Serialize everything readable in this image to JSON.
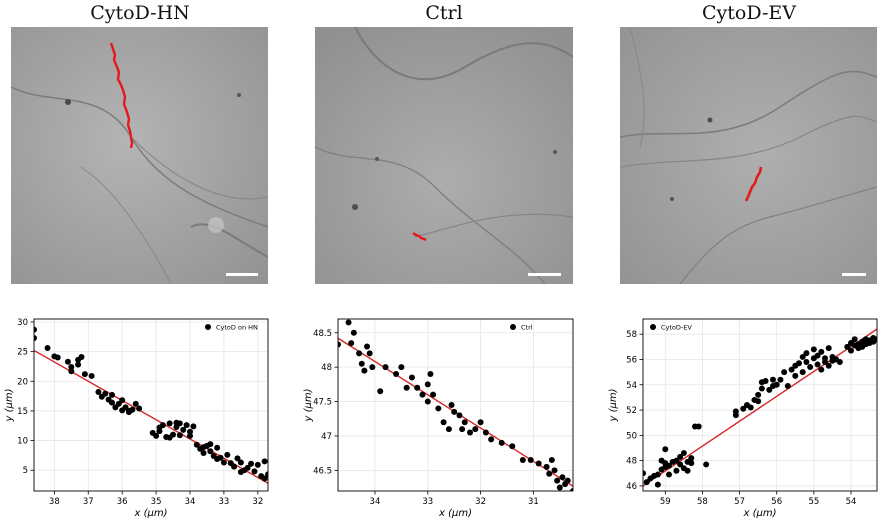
{
  "panels": [
    {
      "title": "CytoD-HN"
    },
    {
      "title": "Ctrl"
    },
    {
      "title": "CytoD-EV"
    }
  ],
  "colors": {
    "track": "#e41a1c",
    "fit_line": "#d62728",
    "points": "#000000",
    "grid": "#e6e6e6"
  },
  "chart_data": [
    {
      "type": "scatter",
      "xlabel": "x (μm)",
      "ylabel": "y (μm)",
      "x_reversed": true,
      "xlim": [
        38.6,
        31.7
      ],
      "ylim": [
        1.5,
        30.5
      ],
      "xticks": [
        38,
        37,
        36,
        35,
        34,
        33,
        32
      ],
      "yticks": [
        5,
        10,
        15,
        20,
        25,
        30
      ],
      "legend": "CytoD on HN",
      "legend_position": "top-right",
      "grid": true,
      "fit_line": {
        "x": [
          38.6,
          31.7
        ],
        "y": [
          25.2,
          2.8
        ]
      },
      "series": [
        {
          "name": "CytoD on HN",
          "points": [
            [
              38.6,
              28.7
            ],
            [
              38.6,
              27.3
            ],
            [
              38.2,
              25.6
            ],
            [
              38.0,
              24.2
            ],
            [
              37.9,
              24.0
            ],
            [
              37.6,
              23.3
            ],
            [
              37.5,
              22.4
            ],
            [
              37.5,
              21.7
            ],
            [
              37.3,
              23.6
            ],
            [
              37.2,
              24.1
            ],
            [
              37.3,
              22.8
            ],
            [
              37.1,
              21.2
            ],
            [
              36.9,
              20.9
            ],
            [
              36.7,
              18.2
            ],
            [
              36.6,
              17.4
            ],
            [
              36.5,
              17.9
            ],
            [
              36.4,
              16.9
            ],
            [
              36.3,
              16.4
            ],
            [
              36.2,
              15.6
            ],
            [
              36.3,
              17.7
            ],
            [
              36.1,
              16.2
            ],
            [
              36.0,
              15.1
            ],
            [
              35.9,
              15.6
            ],
            [
              35.8,
              15.0
            ],
            [
              35.7,
              15.2
            ],
            [
              35.6,
              16.2
            ],
            [
              35.5,
              15.4
            ],
            [
              36.0,
              16.8
            ],
            [
              35.8,
              14.8
            ],
            [
              35.1,
              11.3
            ],
            [
              35.0,
              10.8
            ],
            [
              34.9,
              11.6
            ],
            [
              34.8,
              12.6
            ],
            [
              34.7,
              10.6
            ],
            [
              34.6,
              12.9
            ],
            [
              34.5,
              11.0
            ],
            [
              34.4,
              12.3
            ],
            [
              34.3,
              10.9
            ],
            [
              34.2,
              11.8
            ],
            [
              34.1,
              12.6
            ],
            [
              34.0,
              11.5
            ],
            [
              33.9,
              12.4
            ],
            [
              34.4,
              13.0
            ],
            [
              34.6,
              10.5
            ],
            [
              34.9,
              12.2
            ],
            [
              34.3,
              12.9
            ],
            [
              34.0,
              10.8
            ],
            [
              33.8,
              9.3
            ],
            [
              33.7,
              8.6
            ],
            [
              33.6,
              7.9
            ],
            [
              33.5,
              9.1
            ],
            [
              33.4,
              8.2
            ],
            [
              33.3,
              7.4
            ],
            [
              33.2,
              8.8
            ],
            [
              33.1,
              7.1
            ],
            [
              33.0,
              6.3
            ],
            [
              32.9,
              7.6
            ],
            [
              33.2,
              6.9
            ],
            [
              33.4,
              9.4
            ],
            [
              33.6,
              8.9
            ],
            [
              32.8,
              6.2
            ],
            [
              32.7,
              5.6
            ],
            [
              32.6,
              7.0
            ],
            [
              32.5,
              6.3
            ],
            [
              32.4,
              5.0
            ],
            [
              32.3,
              5.4
            ],
            [
              32.1,
              4.8
            ],
            [
              32.0,
              5.9
            ],
            [
              31.9,
              4.0
            ],
            [
              31.8,
              3.6
            ],
            [
              31.7,
              4.3
            ],
            [
              32.5,
              4.7
            ],
            [
              32.2,
              6.1
            ],
            [
              31.8,
              6.5
            ]
          ]
        }
      ]
    },
    {
      "type": "scatter",
      "xlabel": "x (μm)",
      "ylabel": "y (μm)",
      "x_reversed": true,
      "xlim": [
        34.7,
        30.25
      ],
      "ylim": [
        46.2,
        48.7
      ],
      "xticks": [
        34,
        33,
        32,
        31
      ],
      "yticks": [
        46.5,
        47.0,
        47.5,
        48.0,
        48.5
      ],
      "legend": "Ctrl",
      "legend_position": "top-right",
      "grid": true,
      "fit_line": {
        "x": [
          34.7,
          30.25
        ],
        "y": [
          48.42,
          46.27
        ]
      },
      "series": [
        {
          "name": "Ctrl",
          "points": [
            [
              34.7,
              48.33
            ],
            [
              34.5,
              48.65
            ],
            [
              34.45,
              48.35
            ],
            [
              34.4,
              48.5
            ],
            [
              34.3,
              48.2
            ],
            [
              34.25,
              48.05
            ],
            [
              34.2,
              47.95
            ],
            [
              34.15,
              48.3
            ],
            [
              34.1,
              48.2
            ],
            [
              34.05,
              48.0
            ],
            [
              33.9,
              47.65
            ],
            [
              33.8,
              48.0
            ],
            [
              33.6,
              47.9
            ],
            [
              33.5,
              48.0
            ],
            [
              33.4,
              47.7
            ],
            [
              33.3,
              47.85
            ],
            [
              33.2,
              47.7
            ],
            [
              33.1,
              47.6
            ],
            [
              33.0,
              47.5
            ],
            [
              33.0,
              47.75
            ],
            [
              32.95,
              47.9
            ],
            [
              32.9,
              47.6
            ],
            [
              32.8,
              47.4
            ],
            [
              32.7,
              47.2
            ],
            [
              32.6,
              47.1
            ],
            [
              32.55,
              47.45
            ],
            [
              32.5,
              47.35
            ],
            [
              32.4,
              47.3
            ],
            [
              32.35,
              47.1
            ],
            [
              32.3,
              47.2
            ],
            [
              32.2,
              47.05
            ],
            [
              32.1,
              47.1
            ],
            [
              32.0,
              47.2
            ],
            [
              31.9,
              47.05
            ],
            [
              31.8,
              46.95
            ],
            [
              31.6,
              46.9
            ],
            [
              31.4,
              46.85
            ],
            [
              31.2,
              46.65
            ],
            [
              31.05,
              46.65
            ],
            [
              30.9,
              46.6
            ],
            [
              30.75,
              46.55
            ],
            [
              30.7,
              46.45
            ],
            [
              30.6,
              46.5
            ],
            [
              30.55,
              46.35
            ],
            [
              30.5,
              46.25
            ],
            [
              30.4,
              46.3
            ],
            [
              30.35,
              46.35
            ],
            [
              30.25,
              46.2
            ],
            [
              30.45,
              46.4
            ],
            [
              30.65,
              46.65
            ]
          ]
        }
      ]
    },
    {
      "type": "scatter",
      "xlabel": "x (μm)",
      "ylabel": "y (μm)",
      "x_reversed": true,
      "xlim": [
        59.6,
        53.3
      ],
      "ylim": [
        45.6,
        59.2
      ],
      "xticks": [
        59,
        58,
        57,
        56,
        55,
        54
      ],
      "yticks": [
        46,
        48,
        50,
        52,
        54,
        56,
        58
      ],
      "legend": "CytoD-EV",
      "legend_position": "top-left",
      "grid": true,
      "fit_line": {
        "x": [
          59.6,
          53.3
        ],
        "y": [
          46.0,
          58.4
        ]
      },
      "series": [
        {
          "name": "CytoD-EV",
          "points": [
            [
              59.6,
              47.0
            ],
            [
              59.5,
              46.3
            ],
            [
              59.4,
              46.6
            ],
            [
              59.3,
              46.8
            ],
            [
              59.2,
              46.1
            ],
            [
              59.2,
              46.9
            ],
            [
              59.1,
              47.3
            ],
            [
              59.1,
              48.0
            ],
            [
              59.0,
              47.5
            ],
            [
              59.0,
              47.8
            ],
            [
              59.0,
              48.9
            ],
            [
              58.9,
              46.9
            ],
            [
              58.9,
              47.6
            ],
            [
              58.8,
              47.9
            ],
            [
              58.7,
              48.0
            ],
            [
              58.7,
              47.2
            ],
            [
              58.6,
              47.7
            ],
            [
              58.6,
              48.3
            ],
            [
              58.5,
              47.4
            ],
            [
              58.5,
              48.6
            ],
            [
              58.4,
              47.9
            ],
            [
              58.4,
              47.2
            ],
            [
              58.3,
              48.2
            ],
            [
              58.3,
              47.8
            ],
            [
              58.2,
              50.7
            ],
            [
              58.1,
              50.7
            ],
            [
              57.9,
              47.7
            ],
            [
              57.1,
              51.6
            ],
            [
              57.1,
              51.9
            ],
            [
              56.9,
              52.1
            ],
            [
              56.8,
              52.4
            ],
            [
              56.7,
              52.2
            ],
            [
              56.6,
              52.8
            ],
            [
              56.5,
              53.2
            ],
            [
              56.5,
              52.7
            ],
            [
              56.4,
              53.7
            ],
            [
              56.4,
              54.2
            ],
            [
              56.3,
              54.3
            ],
            [
              56.2,
              53.6
            ],
            [
              56.1,
              54.4
            ],
            [
              56.1,
              53.9
            ],
            [
              56.0,
              54.0
            ],
            [
              55.9,
              54.4
            ],
            [
              55.8,
              55.0
            ],
            [
              55.7,
              53.9
            ],
            [
              55.6,
              55.2
            ],
            [
              55.5,
              54.7
            ],
            [
              55.5,
              55.5
            ],
            [
              55.4,
              55.7
            ],
            [
              55.3,
              56.2
            ],
            [
              55.3,
              55.0
            ],
            [
              55.2,
              55.8
            ],
            [
              55.2,
              56.5
            ],
            [
              55.1,
              55.4
            ],
            [
              55.0,
              56.1
            ],
            [
              55.0,
              56.8
            ],
            [
              54.9,
              56.3
            ],
            [
              54.9,
              55.6
            ],
            [
              54.8,
              56.6
            ],
            [
              54.8,
              55.2
            ],
            [
              54.7,
              56.1
            ],
            [
              54.7,
              55.8
            ],
            [
              54.6,
              56.9
            ],
            [
              54.6,
              55.5
            ],
            [
              54.5,
              56.2
            ],
            [
              54.5,
              55.9
            ],
            [
              54.4,
              56.0
            ],
            [
              54.3,
              55.8
            ],
            [
              54.1,
              57.0
            ],
            [
              54.0,
              57.3
            ],
            [
              54.0,
              56.7
            ],
            [
              53.9,
              57.6
            ],
            [
              53.9,
              57.1
            ],
            [
              53.8,
              57.2
            ],
            [
              53.8,
              56.9
            ],
            [
              53.7,
              57.4
            ],
            [
              53.7,
              57.0
            ],
            [
              53.6,
              57.6
            ],
            [
              53.6,
              57.2
            ],
            [
              53.5,
              57.5
            ],
            [
              53.5,
              57.3
            ],
            [
              53.4,
              57.4
            ],
            [
              53.4,
              57.7
            ],
            [
              53.3,
              57.6
            ]
          ]
        }
      ]
    }
  ]
}
